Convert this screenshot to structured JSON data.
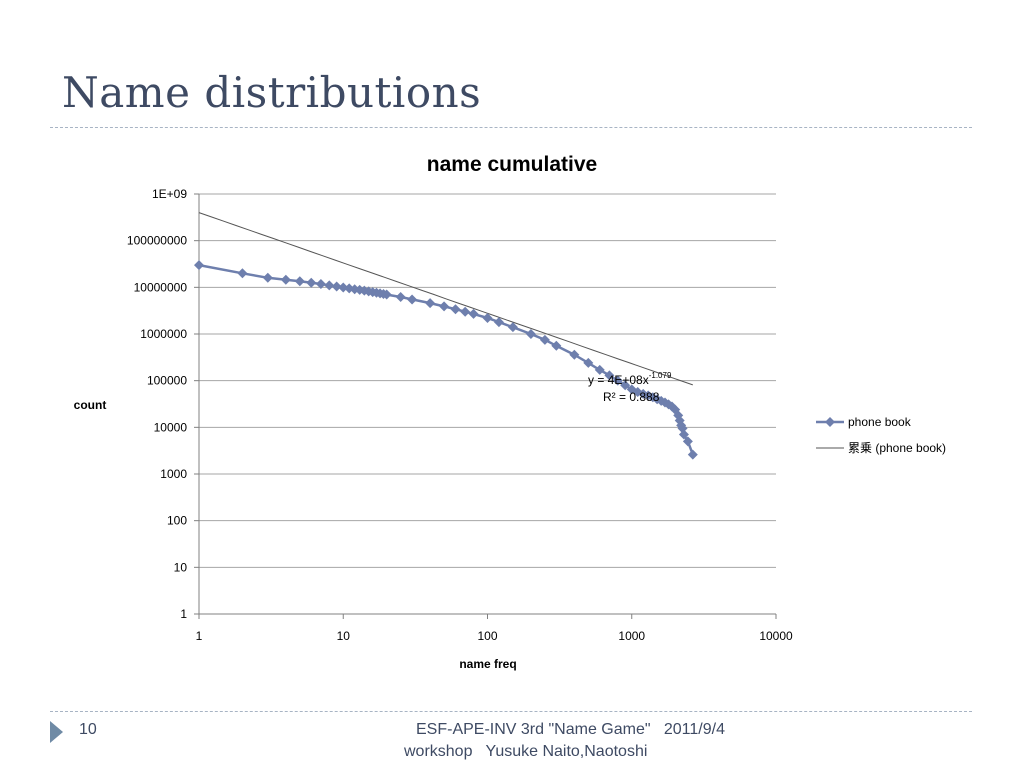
{
  "slide": {
    "title": "Name distributions",
    "number": "10",
    "footer_line1": "ESF-APE-INV 3rd \"Name Game\"   2011/9/4",
    "footer_line2": "workshop   Yusuke Naito,Naotoshi"
  },
  "colors": {
    "title": "#3e4a63",
    "series": "#6e7fad",
    "trendline": "#555555",
    "gridline": "#a6a6a6",
    "accent_arrow": "#6f8aa5"
  },
  "chart_data": {
    "type": "scatter",
    "title": "name cumulative",
    "xlabel": "name freq",
    "ylabel": "count",
    "x_scale": "log",
    "y_scale": "log",
    "xlim": [
      1,
      10000
    ],
    "ylim": [
      1,
      1000000000
    ],
    "x_ticks": [
      "1",
      "10",
      "100",
      "1000",
      "10000"
    ],
    "y_ticks": [
      "1",
      "10",
      "100",
      "1000",
      "10000",
      "100000",
      "1000000",
      "10000000",
      "100000000",
      "1E+09"
    ],
    "grid": "horizontal",
    "legend_position": "right",
    "legend": [
      "phone book",
      "累乗 (phone book)"
    ],
    "series": [
      {
        "name": "phone book",
        "marker": "diamond",
        "points": [
          [
            1,
            30000000
          ],
          [
            2,
            20000000
          ],
          [
            3,
            16000000
          ],
          [
            4,
            14500000
          ],
          [
            5,
            13500000
          ],
          [
            6,
            12500000
          ],
          [
            7,
            11800000
          ],
          [
            8,
            11000000
          ],
          [
            9,
            10400000
          ],
          [
            10,
            9900000
          ],
          [
            11,
            9500000
          ],
          [
            12,
            9100000
          ],
          [
            13,
            8800000
          ],
          [
            14,
            8500000
          ],
          [
            15,
            8200000
          ],
          [
            16,
            7900000
          ],
          [
            17,
            7650000
          ],
          [
            18,
            7400000
          ],
          [
            19,
            7200000
          ],
          [
            20,
            7000000
          ],
          [
            25,
            6200000
          ],
          [
            30,
            5500000
          ],
          [
            40,
            4600000
          ],
          [
            50,
            3900000
          ],
          [
            60,
            3400000
          ],
          [
            70,
            3000000
          ],
          [
            80,
            2700000
          ],
          [
            100,
            2200000
          ],
          [
            120,
            1800000
          ],
          [
            150,
            1400000
          ],
          [
            200,
            1000000
          ],
          [
            250,
            750000
          ],
          [
            300,
            560000
          ],
          [
            400,
            360000
          ],
          [
            500,
            240000
          ],
          [
            600,
            170000
          ],
          [
            700,
            130000
          ],
          [
            800,
            100000
          ],
          [
            900,
            80000
          ],
          [
            1000,
            65000
          ],
          [
            1100,
            57000
          ],
          [
            1200,
            52000
          ],
          [
            1300,
            48000
          ],
          [
            1400,
            44000
          ],
          [
            1500,
            40000
          ],
          [
            1600,
            37000
          ],
          [
            1700,
            34000
          ],
          [
            1800,
            31000
          ],
          [
            1900,
            28000
          ],
          [
            2000,
            24000
          ],
          [
            2100,
            18000
          ],
          [
            2150,
            14000
          ],
          [
            2200,
            11000
          ],
          [
            2250,
            9500
          ],
          [
            2300,
            7000
          ],
          [
            2450,
            5000
          ],
          [
            2650,
            2600
          ]
        ]
      },
      {
        "name": "累乗 (phone book)",
        "type": "trendline",
        "equation": "y = 4E+08x^-1.079",
        "coefficient": 400000000,
        "exponent": -1.079,
        "r_squared": "0.888",
        "x_range": [
          1,
          2650
        ]
      }
    ],
    "annotation": {
      "eq_prefix": "y = 4E+08x",
      "eq_exponent": "-1.079",
      "r2_label": "R² = 0.888"
    }
  }
}
